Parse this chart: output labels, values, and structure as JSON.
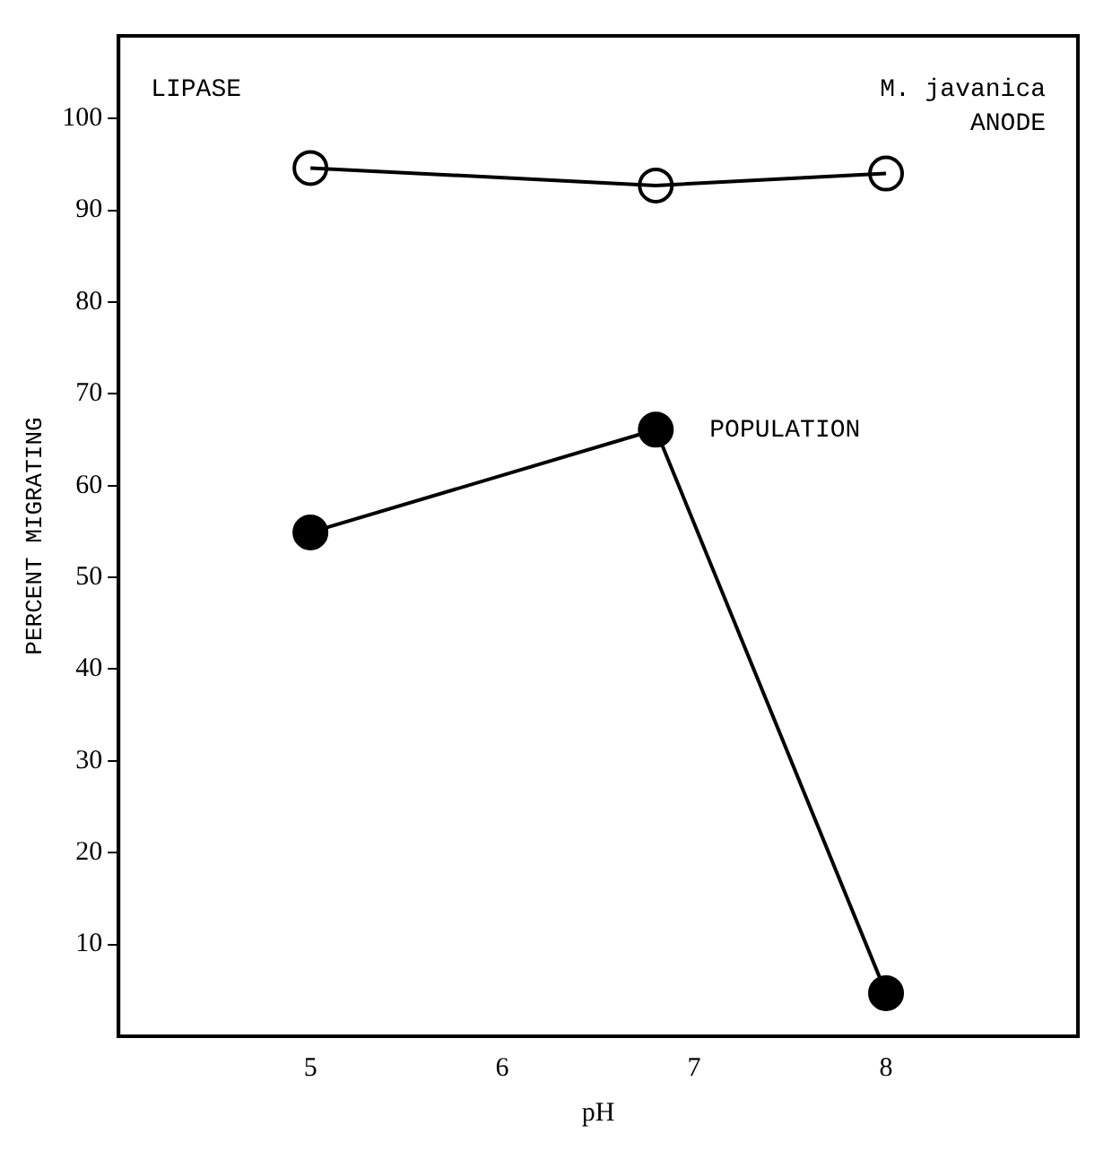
{
  "chart_data": {
    "type": "line",
    "xlabel": "pH",
    "ylabel": "PERCENT MIGRATING",
    "annotations": [
      "LIPASE",
      "M. javanica"
    ],
    "series": [
      {
        "name": "ANODE",
        "color": "#000000",
        "x": [
          5,
          6.8,
          8
        ],
        "values": [
          94.6,
          92.7,
          94.0
        ]
      },
      {
        "name": "POPULATION",
        "color": "#000000",
        "x": [
          5,
          6.8,
          8
        ],
        "values": [
          54.9,
          66.1,
          4.7
        ]
      }
    ],
    "xlim": [
      4,
      9
    ],
    "xticks": [
      5,
      6,
      7,
      8
    ],
    "ylim": [
      0,
      109
    ],
    "yticks": [
      10,
      20,
      30,
      40,
      50,
      60,
      70,
      80,
      90,
      100
    ],
    "grid": false,
    "legend": false,
    "marker": "circle",
    "line_style": "solid"
  }
}
